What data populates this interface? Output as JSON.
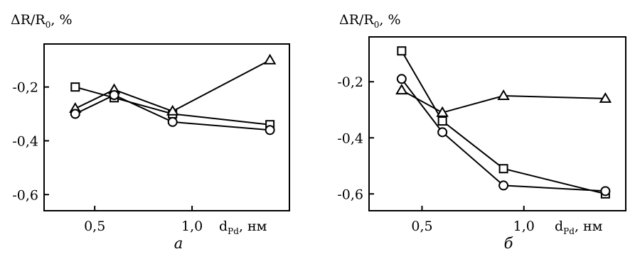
{
  "chart_data": [
    {
      "type": "line",
      "panel_label": "а",
      "ylabel_main": "ΔR/R",
      "ylabel_sub": "0",
      "ylabel_unit": ", %",
      "xlabel_main": "d",
      "xlabel_sub": "Pd",
      "xlabel_unit": ", нм",
      "xlim": [
        0.24,
        1.5
      ],
      "ylim": [
        -0.66,
        -0.04
      ],
      "xticks": [
        0.5,
        1.0
      ],
      "xtick_labels": [
        "0,5",
        "1,0"
      ],
      "yticks": [
        -0.2,
        -0.4,
        -0.6
      ],
      "ytick_labels": [
        "-0,2",
        "-0,4",
        "-0,6"
      ],
      "series": [
        {
          "marker": "square",
          "x": [
            0.4,
            0.6,
            0.9,
            1.4
          ],
          "values": [
            -0.2,
            -0.24,
            -0.3,
            -0.34
          ]
        },
        {
          "marker": "triangle",
          "x": [
            0.4,
            0.6,
            0.9,
            1.4
          ],
          "values": [
            -0.28,
            -0.21,
            -0.29,
            -0.1
          ]
        },
        {
          "marker": "circle",
          "x": [
            0.4,
            0.6,
            0.9,
            1.4
          ],
          "values": [
            -0.3,
            -0.23,
            -0.33,
            -0.36
          ]
        }
      ]
    },
    {
      "type": "line",
      "panel_label": "б",
      "ylabel_main": "ΔR/R",
      "ylabel_sub": "0",
      "ylabel_unit": ", %",
      "xlabel_main": "d",
      "xlabel_sub": "Pd",
      "xlabel_unit": ", нм",
      "xlim": [
        0.24,
        1.5
      ],
      "ylim": [
        -0.66,
        -0.04
      ],
      "xticks": [
        0.5,
        1.0
      ],
      "xtick_labels": [
        "0,5",
        "1,0"
      ],
      "yticks": [
        -0.2,
        -0.4,
        -0.6
      ],
      "ytick_labels": [
        "-0,2",
        "-0,4",
        "-0,6"
      ],
      "series": [
        {
          "marker": "square",
          "x": [
            0.4,
            0.6,
            0.9,
            1.4
          ],
          "values": [
            -0.09,
            -0.34,
            -0.51,
            -0.6
          ]
        },
        {
          "marker": "triangle",
          "x": [
            0.4,
            0.6,
            0.9,
            1.4
          ],
          "values": [
            -0.23,
            -0.31,
            -0.25,
            -0.26
          ]
        },
        {
          "marker": "circle",
          "x": [
            0.4,
            0.6,
            0.9,
            1.4
          ],
          "values": [
            -0.19,
            -0.38,
            -0.57,
            -0.59
          ]
        }
      ]
    }
  ]
}
